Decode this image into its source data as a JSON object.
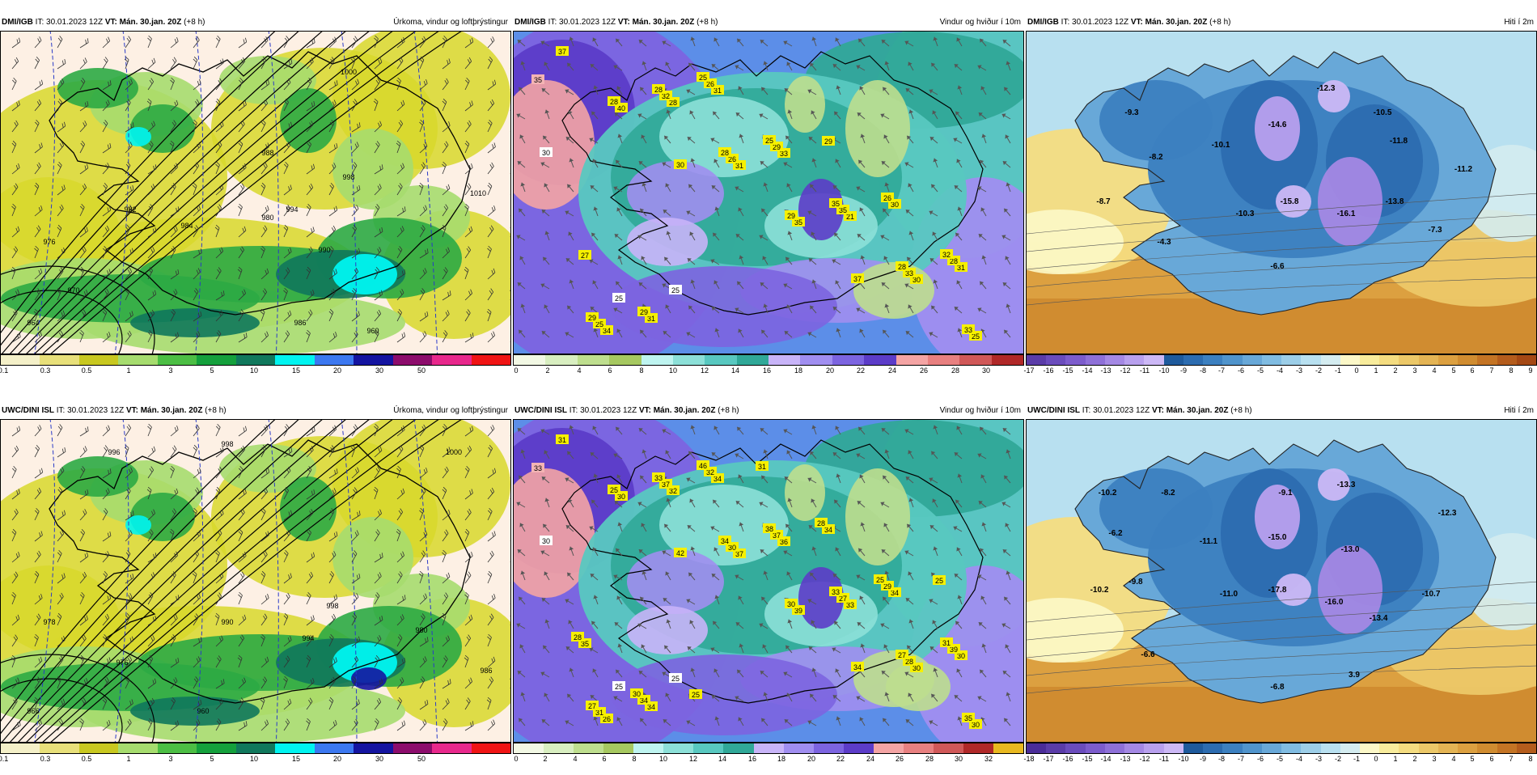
{
  "panels": [
    {
      "source": "DMI/IGB",
      "it": "IT: 30.01.2023 12Z",
      "vt": "VT: Mán. 30.jan. 20Z",
      "lead": "(+8 h)",
      "product": "Úrkoma, vindur og loftþrýstingur",
      "kind": "precip",
      "ticks": [
        "0.1",
        "0.3",
        "0.5",
        "1",
        "3",
        "5",
        "10",
        "15",
        "20",
        "30",
        "50"
      ],
      "colors": [
        "#f4f0c8",
        "#e8e07a",
        "#c8c820",
        "#a6dc6e",
        "#4cbe44",
        "#14a03c",
        "#10785c",
        "#00f4f0",
        "#3c78f0",
        "#1414a0",
        "#8c0c6c",
        "#e8288c",
        "#f01414"
      ]
    },
    {
      "source": "DMI/IGB",
      "it": "IT: 30.01.2023 12Z",
      "vt": "VT: Mán. 30.jan. 20Z",
      "lead": "(+8 h)",
      "product": "Vindur og hviður í 10m",
      "kind": "wind",
      "ticks": [
        "0",
        "2",
        "4",
        "6",
        "8",
        "10",
        "12",
        "14",
        "16",
        "18",
        "20",
        "22",
        "24",
        "26",
        "28",
        "30"
      ],
      "colors": [
        "#f2f8e4",
        "#d8eec0",
        "#bede8e",
        "#a6c860",
        "#bef4f0",
        "#8ce0d8",
        "#58c8c0",
        "#30a898",
        "#c8b4f8",
        "#a08ef0",
        "#7c64e0",
        "#5c3cc8",
        "#f4a4a4",
        "#e88080",
        "#d05858",
        "#b02828"
      ]
    },
    {
      "source": "DMI/IGB",
      "it": "IT: 30.01.2023 12Z",
      "vt": "VT: Mán. 30.jan. 20Z",
      "lead": "(+8 h)",
      "product": "Hiti í 2m",
      "kind": "temp",
      "ticks": [
        "-17",
        "-16",
        "-15",
        "-14",
        "-13",
        "-12",
        "-11",
        "-10",
        "-9",
        "-8",
        "-7",
        "-6",
        "-5",
        "-4",
        "-3",
        "-2",
        "-1",
        "0",
        "1",
        "2",
        "3",
        "4",
        "5",
        "6",
        "7",
        "8",
        "9"
      ],
      "colors": [
        "#5a3ca8",
        "#6a4cbc",
        "#7c5ccc",
        "#8e70d8",
        "#a488e4",
        "#b8a0ee",
        "#ccb8f6",
        "#1e5a9c",
        "#2c6cb0",
        "#3c80c0",
        "#5094cc",
        "#68a8d8",
        "#80bce2",
        "#9ccee8",
        "#b8e0f0",
        "#d4ecf0",
        "#fcf8c8",
        "#f8ec9c",
        "#f4dc80",
        "#ecc868",
        "#e4b454",
        "#dca040",
        "#d08c30",
        "#c47424",
        "#b45c1c",
        "#a44814"
      ]
    },
    {
      "source": "UWC/DINI ISL",
      "it": "IT: 30.01.2023 12Z",
      "vt": "VT: Mán. 30.jan. 20Z",
      "lead": "(+8 h)",
      "product": "Úrkoma, vindur og loftþrýstingur",
      "kind": "precip",
      "ticks": [
        "0.1",
        "0.3",
        "0.5",
        "1",
        "3",
        "5",
        "10",
        "15",
        "20",
        "30",
        "50"
      ],
      "colors": [
        "#f4f0c8",
        "#e8e07a",
        "#c8c820",
        "#a6dc6e",
        "#4cbe44",
        "#14a03c",
        "#10785c",
        "#00f4f0",
        "#3c78f0",
        "#1414a0",
        "#8c0c6c",
        "#e8288c",
        "#f01414"
      ]
    },
    {
      "source": "UWC/DINI ISL",
      "it": "IT: 30.01.2023 12Z",
      "vt": "VT: Mán. 30.jan. 20Z",
      "lead": "(+8 h)",
      "product": "Vindur og hviður í 10m",
      "kind": "wind",
      "ticks": [
        "0",
        "2",
        "4",
        "6",
        "8",
        "10",
        "12",
        "14",
        "16",
        "18",
        "20",
        "22",
        "24",
        "26",
        "28",
        "30",
        "32"
      ],
      "colors": [
        "#f2f8e4",
        "#d8eec0",
        "#bede8e",
        "#a6c860",
        "#bef4f0",
        "#8ce0d8",
        "#58c8c0",
        "#30a898",
        "#c8b4f8",
        "#a08ef0",
        "#7c64e0",
        "#5c3cc8",
        "#f4a4a4",
        "#e88080",
        "#d05858",
        "#b02828",
        "#e8b820"
      ]
    },
    {
      "source": "UWC/DINI ISL",
      "it": "IT: 30.01.2023 12Z",
      "vt": "VT: Mán. 30.jan. 20Z",
      "lead": "(+8 h)",
      "product": "Hiti í 2m",
      "kind": "temp",
      "ticks": [
        "-18",
        "-17",
        "-16",
        "-15",
        "-14",
        "-13",
        "-12",
        "-11",
        "-10",
        "-9",
        "-8",
        "-7",
        "-6",
        "-5",
        "-4",
        "-3",
        "-2",
        "-1",
        "0",
        "1",
        "2",
        "3",
        "4",
        "5",
        "6",
        "7",
        "8"
      ],
      "colors": [
        "#4a2c98",
        "#5a3ca8",
        "#6a4cbc",
        "#7c5ccc",
        "#8e70d8",
        "#a488e4",
        "#b8a0ee",
        "#ccb8f6",
        "#1e5a9c",
        "#2c6cb0",
        "#3c80c0",
        "#5094cc",
        "#68a8d8",
        "#80bce2",
        "#9ccee8",
        "#b8e0f0",
        "#d4ecf0",
        "#fcf8c8",
        "#f8ec9c",
        "#f4dc80",
        "#ecc868",
        "#e4b454",
        "#dca040",
        "#d08c30",
        "#c47424",
        "#b45c1c"
      ]
    }
  ],
  "temp_labels": [
    [
      "-9.3",
      "-8.2",
      "-8.7",
      "-10.1",
      "-12.3",
      "-14.6",
      "-10.5",
      "-11.8",
      "-11.2",
      "-10.3",
      "-15.8",
      "-16.1",
      "-13.8",
      "-7.3",
      "-4.3",
      "-6.6"
    ],
    [
      "-10.2",
      "-8.2",
      "-6.2",
      "-9.1",
      "-13.3",
      "-11.1",
      "-15.0",
      "-13.0",
      "-12.3",
      "-9.8",
      "-10.2",
      "-11.0",
      "-17.8",
      "-16.0",
      "-10.7",
      "-13.4",
      "-6.6",
      "-6.8",
      "3.9"
    ]
  ],
  "wind_labels": [
    [
      "37",
      "40",
      "30",
      "31",
      "35",
      "37",
      "30",
      "25",
      "28",
      "28",
      "26",
      "29",
      "21",
      "33",
      "33",
      "34",
      "32",
      "28",
      "33",
      "35",
      "28",
      "31",
      "25",
      "28",
      "31",
      "29",
      "35",
      "30",
      "28",
      "29",
      "31",
      "26",
      "25",
      "29",
      "26",
      "32",
      "27",
      "29",
      "25"
    ],
    [
      "31",
      "30",
      "42",
      "37",
      "39",
      "34",
      "30",
      "30",
      "25",
      "32",
      "30",
      "30",
      "33",
      "28",
      "35",
      "26",
      "37",
      "34",
      "36",
      "27",
      "27",
      "30",
      "31",
      "33",
      "34",
      "37",
      "33",
      "34",
      "39",
      "27",
      "34",
      "32",
      "38",
      "34",
      "29",
      "31",
      "35",
      "34",
      "46",
      "31",
      "28",
      "25",
      "25",
      "28",
      "30",
      "25"
    ]
  ],
  "pressure_labels": [
    [
      "976",
      "982",
      "984",
      "980",
      "990",
      "994",
      "998",
      "1000",
      "970",
      "964",
      "960",
      "986",
      "988",
      "1010"
    ],
    [
      "996",
      "998",
      "978",
      "966",
      "976",
      "990",
      "994",
      "998",
      "960",
      "980",
      "986",
      "1000"
    ]
  ]
}
